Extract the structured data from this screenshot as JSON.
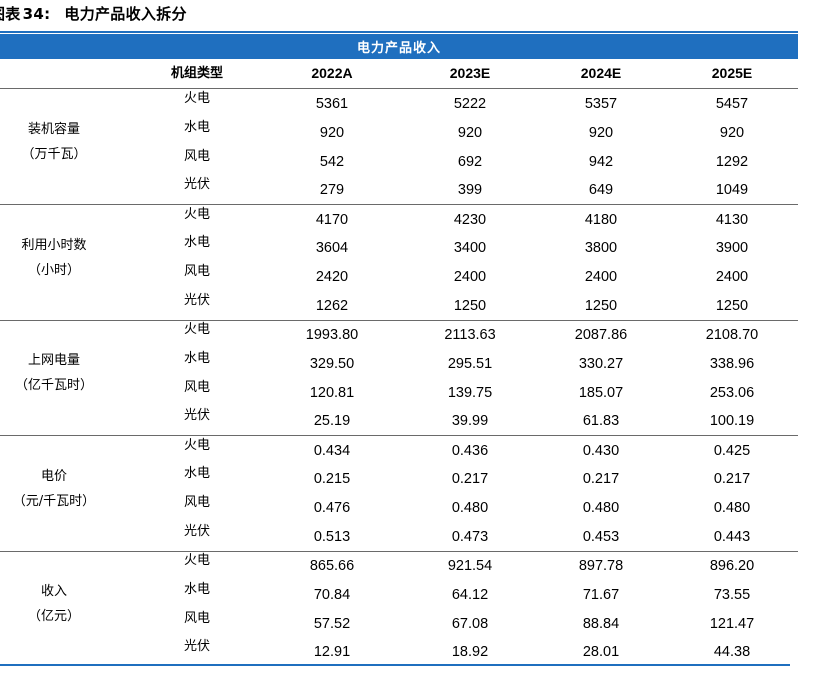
{
  "figure": {
    "label": "图表",
    "number": "34:",
    "title": "电力产品收入拆分"
  },
  "banner": "电力产品收入",
  "header": {
    "type_col": "机组类型",
    "years": [
      "2022A",
      "2023E",
      "2024E",
      "2025E"
    ]
  },
  "groups": [
    {
      "label_line1": "装机容量",
      "label_line2": "（万千瓦）",
      "rows": [
        {
          "type": "火电",
          "values": [
            "5361",
            "5222",
            "5357",
            "5457"
          ]
        },
        {
          "type": "水电",
          "values": [
            "920",
            "920",
            "920",
            "920"
          ]
        },
        {
          "type": "风电",
          "values": [
            "542",
            "692",
            "942",
            "1292"
          ]
        },
        {
          "type": "光伏",
          "values": [
            "279",
            "399",
            "649",
            "1049"
          ]
        }
      ]
    },
    {
      "label_line1": "利用小时数",
      "label_line2": "（小时）",
      "rows": [
        {
          "type": "火电",
          "values": [
            "4170",
            "4230",
            "4180",
            "4130"
          ]
        },
        {
          "type": "水电",
          "values": [
            "3604",
            "3400",
            "3800",
            "3900"
          ]
        },
        {
          "type": "风电",
          "values": [
            "2420",
            "2400",
            "2400",
            "2400"
          ]
        },
        {
          "type": "光伏",
          "values": [
            "1262",
            "1250",
            "1250",
            "1250"
          ]
        }
      ]
    },
    {
      "label_line1": "上网电量",
      "label_line2": "（亿千瓦时）",
      "rows": [
        {
          "type": "火电",
          "values": [
            "1993.80",
            "2113.63",
            "2087.86",
            "2108.70"
          ]
        },
        {
          "type": "水电",
          "values": [
            "329.50",
            "295.51",
            "330.27",
            "338.96"
          ]
        },
        {
          "type": "风电",
          "values": [
            "120.81",
            "139.75",
            "185.07",
            "253.06"
          ]
        },
        {
          "type": "光伏",
          "values": [
            "25.19",
            "39.99",
            "61.83",
            "100.19"
          ]
        }
      ]
    },
    {
      "label_line1": "电价",
      "label_line2": "（元/千瓦时）",
      "rows": [
        {
          "type": "火电",
          "values": [
            "0.434",
            "0.436",
            "0.430",
            "0.425"
          ]
        },
        {
          "type": "水电",
          "values": [
            "0.215",
            "0.217",
            "0.217",
            "0.217"
          ]
        },
        {
          "type": "风电",
          "values": [
            "0.476",
            "0.480",
            "0.480",
            "0.480"
          ]
        },
        {
          "type": "光伏",
          "values": [
            "0.513",
            "0.473",
            "0.453",
            "0.443"
          ]
        }
      ]
    },
    {
      "label_line1": "收入",
      "label_line2": "（亿元）",
      "rows": [
        {
          "type": "火电",
          "values": [
            "865.66",
            "921.54",
            "897.78",
            "896.20"
          ]
        },
        {
          "type": "水电",
          "values": [
            "70.84",
            "64.12",
            "71.67",
            "73.55"
          ]
        },
        {
          "type": "风电",
          "values": [
            "57.52",
            "67.08",
            "88.84",
            "121.47"
          ]
        },
        {
          "type": "光伏",
          "values": [
            "12.91",
            "18.92",
            "28.01",
            "44.38"
          ]
        }
      ]
    }
  ],
  "colors": {
    "accent": "#1f6fbf",
    "rule": "#6a6a6a"
  }
}
